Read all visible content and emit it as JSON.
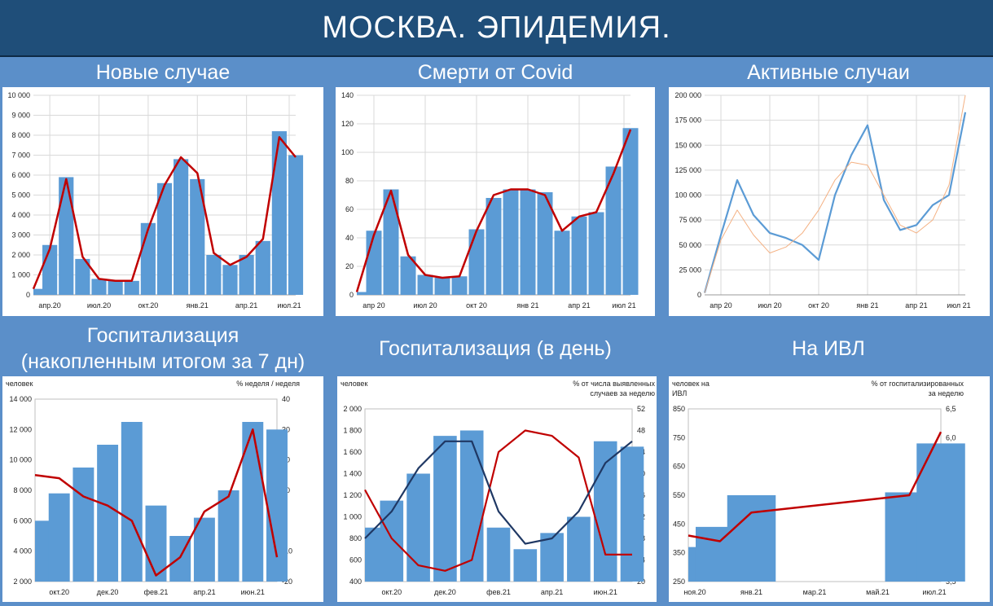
{
  "header": {
    "title": "МОСКВА. ЭПИДЕМИЯ."
  },
  "chart_data": [
    {
      "type": "area",
      "title": "Новые случае",
      "ylim": [
        0,
        10000
      ],
      "yticks": [
        "0",
        "1 000",
        "2 000",
        "3 000",
        "4 000",
        "5 000",
        "6 000",
        "7 000",
        "8 000",
        "9 000",
        "10 000"
      ],
      "xticks": [
        "апр.20",
        "июл.20",
        "окт.20",
        "янв.21",
        "апр.21",
        "июл.21"
      ],
      "x": [
        "2020-03",
        "2020-04",
        "2020-05",
        "2020-06",
        "2020-07",
        "2020-08",
        "2020-09",
        "2020-10",
        "2020-11",
        "2020-12",
        "2021-01",
        "2021-02",
        "2021-03",
        "2021-04",
        "2021-05",
        "2021-06",
        "2021-07"
      ],
      "bars": [
        300,
        2500,
        5900,
        1800,
        800,
        700,
        700,
        3600,
        5600,
        6800,
        5800,
        2000,
        1500,
        2000,
        2700,
        8200,
        7000
      ],
      "line": [
        300,
        2300,
        5800,
        1900,
        800,
        700,
        700,
        3300,
        5500,
        6900,
        6100,
        2100,
        1500,
        1900,
        2800,
        7900,
        6900
      ],
      "colors": {
        "bars": "#5b9bd5",
        "line": "#c00000"
      }
    },
    {
      "type": "area",
      "title": "Смерти от Covid",
      "ylim": [
        0,
        140
      ],
      "yticks": [
        "0",
        "20",
        "40",
        "60",
        "80",
        "100",
        "120",
        "140"
      ],
      "xticks": [
        "апр 20",
        "июл 20",
        "окт 20",
        "янв 21",
        "апр 21",
        "июл 21"
      ],
      "x": [
        "2020-03",
        "2020-04",
        "2020-05",
        "2020-06",
        "2020-07",
        "2020-08",
        "2020-09",
        "2020-10",
        "2020-11",
        "2020-12",
        "2021-01",
        "2021-02",
        "2021-03",
        "2021-04",
        "2021-05",
        "2021-06",
        "2021-07"
      ],
      "bars": [
        2,
        45,
        74,
        27,
        14,
        12,
        13,
        46,
        68,
        74,
        74,
        72,
        45,
        55,
        58,
        90,
        117
      ],
      "line": [
        2,
        42,
        73,
        28,
        14,
        12,
        13,
        45,
        70,
        74,
        74,
        70,
        45,
        55,
        58,
        85,
        116
      ],
      "colors": {
        "bars": "#5b9bd5",
        "line": "#c00000"
      }
    },
    {
      "type": "line",
      "title": "Активные случаи",
      "ylim": [
        0,
        200000
      ],
      "yticks": [
        "0",
        "25 000",
        "50 000",
        "75 000",
        "100 000",
        "125 000",
        "150 000",
        "175 000",
        "200 000"
      ],
      "xticks": [
        "апр 20",
        "июл 20",
        "окт 20",
        "янв 21",
        "апр 21",
        "июл 21"
      ],
      "x": [
        "2020-03",
        "2020-04",
        "2020-05",
        "2020-06",
        "2020-07",
        "2020-08",
        "2020-09",
        "2020-10",
        "2020-11",
        "2020-12",
        "2021-01",
        "2021-02",
        "2021-03",
        "2021-04",
        "2021-05",
        "2021-06",
        "2021-07"
      ],
      "series": [
        {
          "values": [
            2000,
            60000,
            115000,
            80000,
            62000,
            57000,
            50000,
            35000,
            100000,
            140000,
            170000,
            95000,
            65000,
            70000,
            90000,
            100000,
            183000
          ],
          "color": "#5b9bd5"
        },
        {
          "values": [
            2000,
            55000,
            85000,
            60000,
            42000,
            48000,
            62000,
            85000,
            115000,
            133000,
            130000,
            100000,
            70000,
            62000,
            75000,
            110000,
            200000
          ],
          "color": "#f4b183"
        }
      ]
    },
    {
      "type": "bar",
      "title": "Госпитализация\n(накопленным итогом за 7 дн)",
      "ylabel": "человек",
      "y2label": "% неделя / неделя",
      "ylim": [
        2000,
        14000
      ],
      "y2lim": [
        -20,
        40
      ],
      "yticks": [
        "2 000",
        "4 000",
        "6 000",
        "8 000",
        "10 000",
        "12 000",
        "14 000"
      ],
      "y2ticks": [
        "-20",
        "-10",
        "0",
        "10",
        "20",
        "30",
        "40"
      ],
      "xticks": [
        "окт.20",
        "дек.20",
        "фев.21",
        "апр.21",
        "июн.21"
      ],
      "x": [
        "2020-09",
        "2020-10",
        "2020-11",
        "2020-12",
        "2021-01",
        "2021-02",
        "2021-03",
        "2021-04",
        "2021-05",
        "2021-06",
        "2021-07"
      ],
      "bars": [
        6000,
        7800,
        9500,
        11000,
        12500,
        7000,
        5000,
        6200,
        8000,
        12500,
        12000
      ],
      "line": [
        15,
        14,
        8,
        5,
        0,
        -18,
        -12,
        3,
        8,
        30,
        -12
      ],
      "colors": {
        "bars": "#5b9bd5",
        "line": "#c00000"
      }
    },
    {
      "type": "bar",
      "title": "Госпитализация (в день)",
      "ylabel": "человек",
      "y2label": "% от числа выявленных случаев за неделю",
      "ylim": [
        400,
        2000
      ],
      "y2lim": [
        20,
        52
      ],
      "yticks": [
        "400",
        "600",
        "800",
        "1 000",
        "1 200",
        "1 400",
        "1 600",
        "1 800",
        "2 000"
      ],
      "y2ticks": [
        "20",
        "24",
        "28",
        "32",
        "36",
        "40",
        "44",
        "48",
        "52"
      ],
      "xticks": [
        "окт.20",
        "дек.20",
        "фев.21",
        "апр.21",
        "июн.21"
      ],
      "x": [
        "2020-09",
        "2020-10",
        "2020-11",
        "2020-12",
        "2021-01",
        "2021-02",
        "2021-03",
        "2021-04",
        "2021-05",
        "2021-06",
        "2021-07"
      ],
      "bars": [
        900,
        1150,
        1400,
        1750,
        1800,
        900,
        700,
        850,
        1000,
        1700,
        1650
      ],
      "series": [
        {
          "values": [
            37,
            28,
            23,
            22,
            24,
            44,
            48,
            47,
            43,
            25,
            25
          ],
          "color": "#c00000"
        },
        {
          "values": [
            28,
            33,
            41,
            46,
            46,
            33,
            27,
            28,
            33,
            42,
            46
          ],
          "color": "#1f3864"
        }
      ]
    },
    {
      "type": "bar",
      "title": "На ИВЛ",
      "ylabel": "человек на ИВЛ",
      "y2label": "% от госпитализированных за неделю",
      "ylim": [
        250,
        850
      ],
      "y2lim": [
        3.5,
        6.5
      ],
      "yticks": [
        "250",
        "350",
        "450",
        "550",
        "650",
        "750",
        "850"
      ],
      "y2ticks": [
        "3,5",
        "4,0",
        "4,5",
        "5,0",
        "5,5",
        "6,0",
        "6,5"
      ],
      "xticks": [
        "ноя.20",
        "янв.21",
        "мар.21",
        "май.21",
        "июл.21"
      ],
      "x": [
        "2020-11",
        "2020-12",
        "2021-01",
        "2021-06",
        "2021-07"
      ],
      "bars": [
        370,
        440,
        550,
        560,
        730
      ],
      "line": [
        4.3,
        4.2,
        4.7,
        5.0,
        6.1
      ],
      "colors": {
        "bars": "#5b9bd5",
        "line": "#c00000"
      }
    }
  ]
}
